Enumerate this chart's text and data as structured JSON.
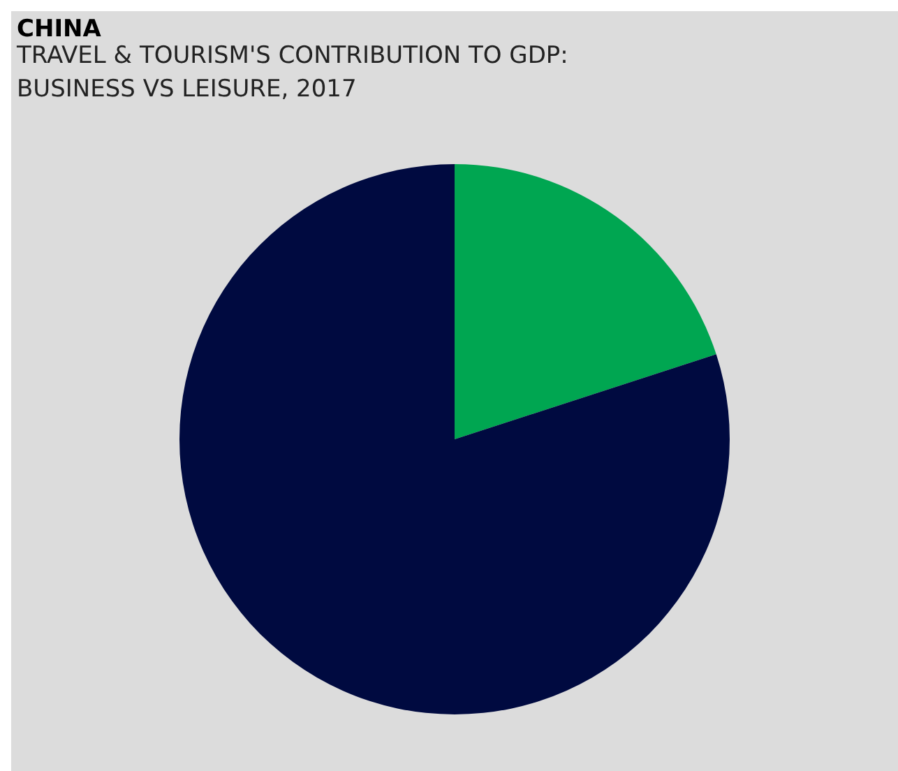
{
  "chart_data": {
    "type": "pie",
    "title": "CHINA",
    "subtitle": "TRAVEL & TOURISM'S CONTRIBUTION TO GDP:\nBUSINESS VS LEISURE, 2017",
    "categories": [
      null,
      null
    ],
    "values": [
      20,
      80
    ],
    "colors": [
      "#00a651",
      "#000a40"
    ],
    "legend": false
  }
}
